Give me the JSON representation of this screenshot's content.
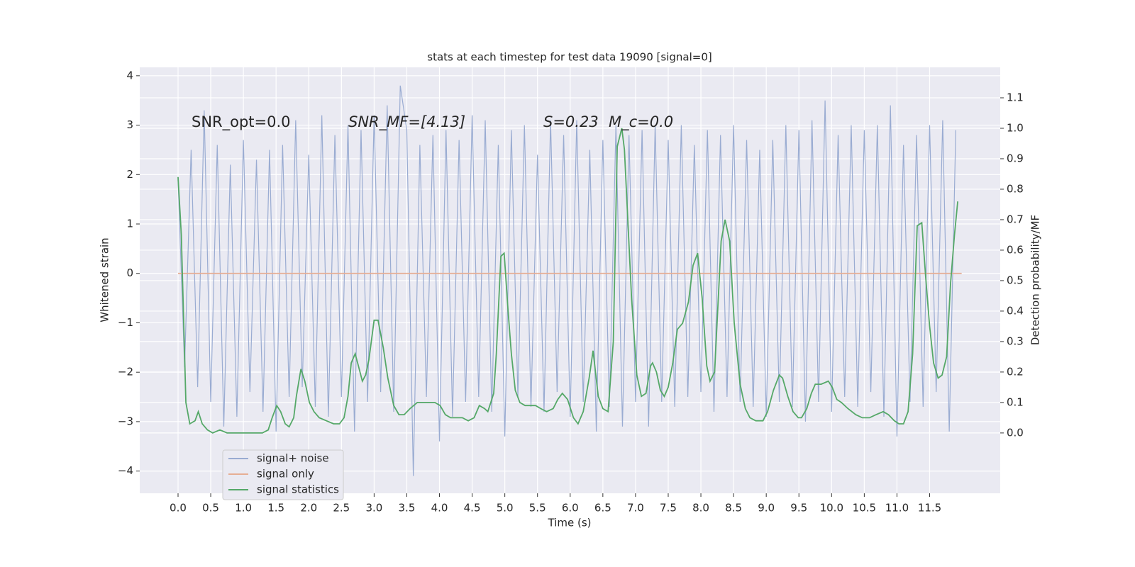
{
  "chart_data": {
    "type": "line",
    "title": "stats at each timestep for test data 19090 [signal=0]",
    "x_label": "Time (s)",
    "y_label": "Whitened strain",
    "y2_label": "Detection probability/MF",
    "annotations": [
      "SNR_opt=0.0",
      "SNR_MF=[4.13]",
      "S=0.23",
      "M_c=0.0"
    ],
    "grid": true,
    "legend": "lower left",
    "xlim": [
      -0.586,
      12.58
    ],
    "ylim": [
      -4.45,
      4.17
    ],
    "y2lim": [
      -0.198,
      1.2
    ],
    "xticks": [
      {
        "value": 0,
        "label": "0.0"
      },
      {
        "value": 0.5,
        "label": "0.5"
      },
      {
        "value": 1,
        "label": "1.0"
      },
      {
        "value": 1.5,
        "label": "1.5"
      },
      {
        "value": 2,
        "label": "2.0"
      },
      {
        "value": 2.5,
        "label": "2.5"
      },
      {
        "value": 3,
        "label": "3.0"
      },
      {
        "value": 3.5,
        "label": "3.5"
      },
      {
        "value": 4,
        "label": "4.0"
      },
      {
        "value": 4.5,
        "label": "4.5"
      },
      {
        "value": 5,
        "label": "5.0"
      },
      {
        "value": 5.5,
        "label": "5.5"
      },
      {
        "value": 6,
        "label": "6.0"
      },
      {
        "value": 6.5,
        "label": "6.5"
      },
      {
        "value": 7,
        "label": "7.0"
      },
      {
        "value": 7.5,
        "label": "7.5"
      },
      {
        "value": 8,
        "label": "8.0"
      },
      {
        "value": 8.5,
        "label": "8.5"
      },
      {
        "value": 9,
        "label": "9.0"
      },
      {
        "value": 9.5,
        "label": "9.5"
      },
      {
        "value": 10,
        "label": "10.0"
      },
      {
        "value": 10.5,
        "label": "10.5"
      },
      {
        "value": 11,
        "label": "11.0"
      },
      {
        "value": 11.5,
        "label": "11.5"
      }
    ],
    "yticks": [
      {
        "value": -4,
        "label": "−4"
      },
      {
        "value": -3,
        "label": "−3"
      },
      {
        "value": -2,
        "label": "−2"
      },
      {
        "value": -1,
        "label": "−1"
      },
      0,
      1,
      2,
      3,
      4
    ],
    "y2ticks": [
      {
        "value": 0,
        "label": "0.0"
      },
      {
        "value": 0.1,
        "label": "0.1"
      },
      {
        "value": 0.2,
        "label": "0.2"
      },
      {
        "value": 0.3,
        "label": "0.3"
      },
      {
        "value": 0.4,
        "label": "0.4"
      },
      {
        "value": 0.5,
        "label": "0.5"
      },
      {
        "value": 0.6,
        "label": "0.6"
      },
      {
        "value": 0.7,
        "label": "0.7"
      },
      {
        "value": 0.8,
        "label": "0.8"
      },
      {
        "value": 0.9,
        "label": "0.9"
      },
      {
        "value": 1,
        "label": "1.0"
      },
      {
        "value": 1.1,
        "label": "1.1"
      }
    ],
    "series": [
      {
        "name": "signal+ noise",
        "color": "#9aacd2",
        "x": [
          0,
          0.1,
          0.2,
          0.3,
          0.4,
          0.5,
          0.6,
          0.7,
          0.8,
          0.9,
          1,
          1.1,
          1.2,
          1.3,
          1.4,
          1.5,
          1.6,
          1.7,
          1.8,
          1.9,
          2,
          2.1,
          2.2,
          2.3,
          2.4,
          2.5,
          2.6,
          2.7,
          2.8,
          2.9,
          3,
          3.1,
          3.2,
          3.3,
          3.4,
          3.5,
          3.6,
          3.7,
          3.8,
          3.9,
          4,
          4.1,
          4.2,
          4.3,
          4.4,
          4.5,
          4.6,
          4.7,
          4.8,
          4.9,
          5,
          5.1,
          5.2,
          5.3,
          5.4,
          5.5,
          5.6,
          5.7,
          5.8,
          5.9,
          6,
          6.1,
          6.2,
          6.3,
          6.4,
          6.5,
          6.6,
          6.7,
          6.8,
          6.9,
          7,
          7.1,
          7.2,
          7.3,
          7.4,
          7.5,
          7.6,
          7.7,
          7.8,
          7.9,
          8,
          8.1,
          8.2,
          8.3,
          8.4,
          8.5,
          8.6,
          8.7,
          8.8,
          8.9,
          9,
          9.1,
          9.2,
          9.3,
          9.4,
          9.5,
          9.6,
          9.7,
          9.8,
          9.9,
          10,
          10.1,
          10.2,
          10.3,
          10.4,
          10.5,
          10.6,
          10.7,
          10.8,
          10.9,
          11,
          11.1,
          11.2,
          11.3,
          11.4,
          11.5,
          11.6,
          11.7,
          11.8,
          11.9
        ],
        "values": [
          1.9,
          -1.9,
          2.5,
          -2.3,
          3.3,
          -2.6,
          2.6,
          -3.1,
          2.2,
          -2.9,
          2.7,
          -2.4,
          2.3,
          -2.8,
          2.5,
          -3.2,
          2.6,
          -2.5,
          3.1,
          -2.3,
          2.4,
          -2.7,
          3.2,
          -2.9,
          2.8,
          -2.5,
          3.0,
          -3.2,
          2.9,
          -2.6,
          3.2,
          -2.4,
          3.4,
          -2.8,
          3.8,
          2.9,
          -4.1,
          2.6,
          -2.5,
          2.8,
          -3.4,
          2.9,
          -2.9,
          2.7,
          -2.6,
          3.2,
          -2.5,
          3.1,
          -2.8,
          2.6,
          -3.3,
          2.9,
          -2.5,
          3.0,
          -2.7,
          2.4,
          -2.8,
          3.1,
          -2.4,
          2.8,
          -2.9,
          3.1,
          -2.6,
          2.5,
          -3.2,
          2.7,
          -2.7,
          3.0,
          -3.1,
          2.8,
          -2.6,
          2.9,
          -3.1,
          3.0,
          -2.6,
          2.7,
          -2.7,
          3.0,
          -2.5,
          2.6,
          -2.4,
          2.9,
          -2.8,
          2.8,
          -2.5,
          3.0,
          -2.6,
          2.7,
          -2.7,
          2.5,
          -2.9,
          2.7,
          -2.6,
          3.0,
          -2.7,
          2.9,
          -3.0,
          3.1,
          -2.6,
          3.5,
          -2.8,
          2.8,
          -2.5,
          3.0,
          -2.7,
          2.9,
          -2.4,
          3.0,
          -2.9,
          3.4,
          -3.3,
          2.6,
          -2.6,
          2.8,
          -2.7,
          3.0,
          -2.4,
          3.1,
          -3.2,
          2.9
        ]
      },
      {
        "name": "signal only",
        "color": "#e6ae94",
        "x": [
          0,
          11.99
        ],
        "values": [
          0,
          0
        ]
      },
      {
        "name": "signal statistics",
        "color": "#55a868",
        "axis": "y2",
        "x": [
          0,
          0.05,
          0.12,
          0.18,
          0.26,
          0.31,
          0.37,
          0.45,
          0.53,
          0.64,
          0.75,
          0.86,
          0.97,
          1.07,
          1.18,
          1.29,
          1.38,
          1.44,
          1.51,
          1.57,
          1.64,
          1.7,
          1.77,
          1.81,
          1.88,
          1.94,
          2.01,
          2.08,
          2.16,
          2.27,
          2.38,
          2.47,
          2.54,
          2.6,
          2.65,
          2.71,
          2.76,
          2.82,
          2.87,
          2.92,
          3.0,
          3.06,
          3.14,
          3.21,
          3.3,
          3.38,
          3.46,
          3.55,
          3.66,
          3.79,
          3.93,
          4.01,
          4.09,
          4.17,
          4.28,
          4.35,
          4.44,
          4.53,
          4.61,
          4.69,
          4.74,
          4.83,
          4.87,
          4.94,
          4.99,
          5.05,
          5.1,
          5.16,
          5.23,
          5.31,
          5.37,
          5.47,
          5.55,
          5.64,
          5.74,
          5.81,
          5.88,
          5.96,
          6.05,
          6.12,
          6.2,
          6.29,
          6.35,
          6.43,
          6.5,
          6.58,
          6.66,
          6.72,
          6.79,
          6.83,
          6.94,
          7.02,
          7.09,
          7.16,
          7.23,
          7.26,
          7.32,
          7.38,
          7.44,
          7.5,
          7.57,
          7.64,
          7.72,
          7.81,
          7.88,
          7.95,
          8.02,
          8.09,
          8.14,
          8.21,
          8.31,
          8.37,
          8.44,
          8.51,
          8.6,
          8.68,
          8.75,
          8.84,
          8.95,
          9.02,
          9.11,
          9.2,
          9.25,
          9.33,
          9.41,
          9.49,
          9.54,
          9.62,
          9.69,
          9.75,
          9.84,
          9.95,
          10.01,
          10.08,
          10.15,
          10.25,
          10.37,
          10.47,
          10.58,
          10.68,
          10.79,
          10.87,
          10.96,
          11.03,
          11.1,
          11.17,
          11.24,
          11.31,
          11.38,
          11.44,
          11.5,
          11.56,
          11.63,
          11.69,
          11.76,
          11.82,
          11.88,
          11.93
        ],
        "values": [
          0.84,
          0.65,
          0.1,
          0.03,
          0.04,
          0.07,
          0.03,
          0.01,
          0.0,
          0.01,
          0.0,
          0.0,
          0.0,
          0.0,
          0.0,
          0.0,
          0.01,
          0.05,
          0.09,
          0.07,
          0.03,
          0.02,
          0.05,
          0.12,
          0.21,
          0.17,
          0.1,
          0.07,
          0.05,
          0.04,
          0.03,
          0.03,
          0.05,
          0.12,
          0.23,
          0.26,
          0.22,
          0.17,
          0.19,
          0.24,
          0.37,
          0.37,
          0.28,
          0.18,
          0.09,
          0.06,
          0.06,
          0.08,
          0.1,
          0.1,
          0.1,
          0.09,
          0.06,
          0.05,
          0.05,
          0.05,
          0.04,
          0.05,
          0.09,
          0.08,
          0.07,
          0.13,
          0.26,
          0.58,
          0.59,
          0.4,
          0.26,
          0.14,
          0.1,
          0.09,
          0.09,
          0.09,
          0.08,
          0.07,
          0.08,
          0.11,
          0.13,
          0.11,
          0.05,
          0.03,
          0.07,
          0.18,
          0.27,
          0.12,
          0.08,
          0.07,
          0.3,
          0.94,
          1.0,
          0.93,
          0.44,
          0.19,
          0.12,
          0.13,
          0.22,
          0.23,
          0.2,
          0.14,
          0.12,
          0.15,
          0.23,
          0.34,
          0.36,
          0.43,
          0.55,
          0.59,
          0.44,
          0.22,
          0.17,
          0.2,
          0.63,
          0.7,
          0.63,
          0.36,
          0.16,
          0.08,
          0.05,
          0.04,
          0.04,
          0.07,
          0.14,
          0.19,
          0.18,
          0.12,
          0.07,
          0.05,
          0.05,
          0.08,
          0.13,
          0.16,
          0.16,
          0.17,
          0.15,
          0.11,
          0.1,
          0.08,
          0.06,
          0.05,
          0.05,
          0.06,
          0.07,
          0.06,
          0.04,
          0.03,
          0.03,
          0.07,
          0.26,
          0.68,
          0.69,
          0.51,
          0.35,
          0.23,
          0.18,
          0.19,
          0.25,
          0.49,
          0.65,
          0.76
        ]
      }
    ]
  }
}
